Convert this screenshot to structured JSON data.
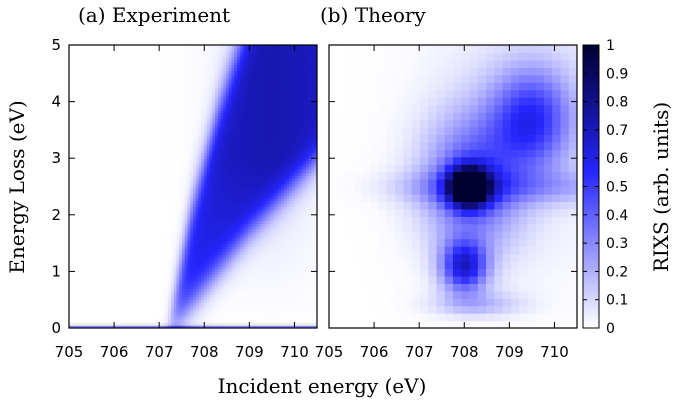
{
  "chart_data": {
    "type": "heatmap",
    "panels": [
      {
        "title": "(a) Experiment",
        "xlim": [
          705,
          710.5
        ],
        "ylim": [
          0,
          5
        ],
        "x_ticks": [
          705,
          706,
          707,
          708,
          709,
          710
        ],
        "y_ticks": [
          0,
          1,
          2,
          3,
          4,
          5
        ],
        "features": {
          "elastic_line": {
            "energy_loss": 0.0,
            "intensity": 0.4
          },
          "dispersive_band": {
            "lower_edge": [
              [
                707.4,
                0.1
              ],
              [
                708.0,
                0.7
              ],
              [
                709.0,
                1.7
              ],
              [
                710.5,
                3.0
              ]
            ],
            "upper_edge": [
              [
                707.3,
                0.4
              ],
              [
                707.7,
                2.0
              ],
              [
                708.3,
                3.8
              ],
              [
                708.8,
                5.0
              ]
            ],
            "max_intensity": 0.65
          }
        }
      },
      {
        "title": "(b) Theory",
        "xlim": [
          705,
          710.5
        ],
        "ylim": [
          0,
          5
        ],
        "x_ticks": [
          705,
          706,
          707,
          708,
          709,
          710
        ],
        "y_ticks": [
          0,
          1,
          2,
          3,
          4,
          5
        ],
        "features": {
          "peaks": [
            {
              "incident": 708.1,
              "loss": 2.5,
              "intensity": 1.0
            },
            {
              "incident": 708.0,
              "loss": 1.1,
              "intensity": 0.6
            },
            {
              "incident": 709.5,
              "loss": 3.7,
              "intensity": 0.5
            }
          ]
        }
      }
    ],
    "xlabel": "Incident energy (eV)",
    "ylabel": "Energy Loss (eV)",
    "colorbar": {
      "label": "RIXS (arb. units)",
      "range": [
        0,
        1
      ],
      "ticks": [
        0,
        0.1,
        0.2,
        0.3,
        0.4,
        0.5,
        0.6,
        0.7,
        0.8,
        0.9,
        1
      ],
      "colors": [
        "#ffffff",
        "#2626ff",
        "#000030"
      ]
    }
  }
}
